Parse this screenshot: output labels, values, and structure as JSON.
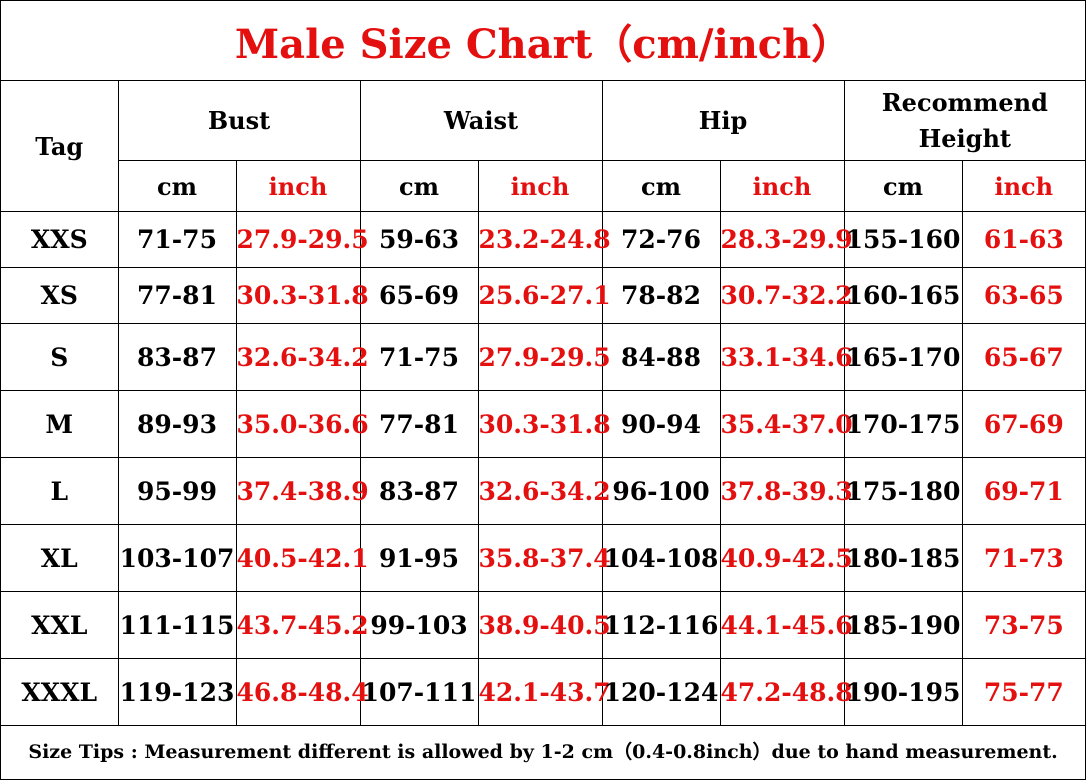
{
  "title": "Male Size Chart（cm/inch）",
  "headers": {
    "tag": "Tag",
    "groups": [
      "Bust",
      "Waist",
      "Hip",
      "Recommend Height"
    ],
    "units": [
      "cm",
      "inch"
    ]
  },
  "rows": [
    {
      "tag": "XXS",
      "bust_cm": "71-75",
      "bust_in": "27.9-29.5",
      "waist_cm": "59-63",
      "waist_in": "23.2-24.8",
      "hip_cm": "72-76",
      "hip_in": "28.3-29.9",
      "height_cm": "155-160",
      "height_in": "61-63"
    },
    {
      "tag": "XS",
      "bust_cm": "77-81",
      "bust_in": "30.3-31.8",
      "waist_cm": "65-69",
      "waist_in": "25.6-27.1",
      "hip_cm": "78-82",
      "hip_in": "30.7-32.2",
      "height_cm": "160-165",
      "height_in": "63-65"
    },
    {
      "tag": "S",
      "bust_cm": "83-87",
      "bust_in": "32.6-34.2",
      "waist_cm": "71-75",
      "waist_in": "27.9-29.5",
      "hip_cm": "84-88",
      "hip_in": "33.1-34.6",
      "height_cm": "165-170",
      "height_in": "65-67"
    },
    {
      "tag": "M",
      "bust_cm": "89-93",
      "bust_in": "35.0-36.6",
      "waist_cm": "77-81",
      "waist_in": "30.3-31.8",
      "hip_cm": "90-94",
      "hip_in": "35.4-37.0",
      "height_cm": "170-175",
      "height_in": "67-69"
    },
    {
      "tag": "L",
      "bust_cm": "95-99",
      "bust_in": "37.4-38.9",
      "waist_cm": "83-87",
      "waist_in": "32.6-34.2",
      "hip_cm": "96-100",
      "hip_in": "37.8-39.3",
      "height_cm": "175-180",
      "height_in": "69-71"
    },
    {
      "tag": "XL",
      "bust_cm": "103-107",
      "bust_in": "40.5-42.1",
      "waist_cm": "91-95",
      "waist_in": "35.8-37.4",
      "hip_cm": "104-108",
      "hip_in": "40.9-42.5",
      "height_cm": "180-185",
      "height_in": "71-73"
    },
    {
      "tag": "XXL",
      "bust_cm": "111-115",
      "bust_in": "43.7-45.2",
      "waist_cm": "99-103",
      "waist_in": "38.9-40.5",
      "hip_cm": "112-116",
      "hip_in": "44.1-45.6",
      "height_cm": "185-190",
      "height_in": "73-75"
    },
    {
      "tag": "XXXL",
      "bust_cm": "119-123",
      "bust_in": "46.8-48.4",
      "waist_cm": "107-111",
      "waist_in": "42.1-43.7",
      "hip_cm": "120-124",
      "hip_in": "47.2-48.8",
      "height_cm": "190-195",
      "height_in": "75-77"
    }
  ],
  "tips": "Size Tips : Measurement different is allowed by 1-2 cm（0.4-0.8inch）due to hand measurement.",
  "colors": {
    "accent_red": "#e3100f",
    "text": "#000000",
    "border": "#000000"
  }
}
